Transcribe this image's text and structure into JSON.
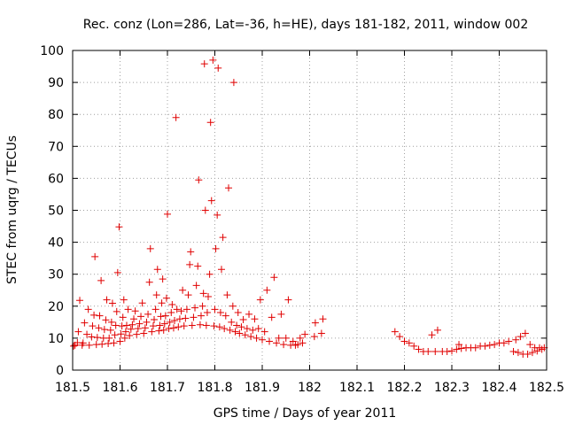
{
  "chart_data": {
    "type": "scatter",
    "title": "Rec. conz (Lon=286, Lat=-36, h=HE), days 181-182, 2011, window 002",
    "xlabel": "GPS time / Days of year 2011",
    "ylabel": "STEC from uqrg / TECUs",
    "xlim": [
      181.5,
      182.5
    ],
    "ylim": [
      0,
      100
    ],
    "x_ticks": [
      "181.5",
      "181.6",
      "181.7",
      "181.8",
      "181.9",
      "182",
      "182.1",
      "182.2",
      "182.3",
      "182.4",
      "182.5"
    ],
    "y_ticks": [
      "0",
      "10",
      "20",
      "30",
      "40",
      "50",
      "60",
      "70",
      "80",
      "90",
      "100"
    ],
    "grid": true,
    "marker": "+",
    "color": "#e00000",
    "series": [
      {
        "points": [
          [
            181.502,
            7.5
          ],
          [
            181.505,
            7.8
          ],
          [
            181.51,
            8.6
          ],
          [
            181.512,
            12.0
          ],
          [
            181.515,
            21.8
          ],
          [
            181.52,
            7.8
          ],
          [
            181.522,
            8.5
          ],
          [
            181.525,
            14.8
          ],
          [
            181.53,
            11.2
          ],
          [
            181.533,
            19.0
          ],
          [
            181.535,
            7.8
          ],
          [
            181.54,
            10.4
          ],
          [
            181.542,
            13.8
          ],
          [
            181.545,
            17.2
          ],
          [
            181.547,
            35.5
          ],
          [
            181.55,
            8.0
          ],
          [
            181.552,
            10.2
          ],
          [
            181.555,
            13.2
          ],
          [
            181.557,
            17.0
          ],
          [
            181.56,
            28.0
          ],
          [
            181.562,
            8.1
          ],
          [
            181.565,
            10.0
          ],
          [
            181.567,
            12.7
          ],
          [
            181.57,
            15.7
          ],
          [
            181.572,
            22.0
          ],
          [
            181.575,
            8.3
          ],
          [
            181.577,
            10.0
          ],
          [
            181.58,
            12.5
          ],
          [
            181.582,
            15.0
          ],
          [
            181.584,
            20.9
          ],
          [
            181.587,
            8.5
          ],
          [
            181.589,
            11.0
          ],
          [
            181.591,
            14.0
          ],
          [
            181.593,
            18.3
          ],
          [
            181.595,
            30.5
          ],
          [
            181.598,
            44.8
          ],
          [
            181.6,
            9.0
          ],
          [
            181.602,
            11.3
          ],
          [
            181.604,
            13.8
          ],
          [
            181.606,
            16.5
          ],
          [
            181.608,
            22.0
          ],
          [
            181.61,
            10.0
          ],
          [
            181.612,
            12.0
          ],
          [
            181.614,
            14.0
          ],
          [
            181.617,
            19.0
          ],
          [
            181.62,
            10.8
          ],
          [
            181.623,
            12.8
          ],
          [
            181.626,
            14.2
          ],
          [
            181.629,
            16.0
          ],
          [
            181.632,
            18.5
          ],
          [
            181.635,
            11.2
          ],
          [
            181.638,
            13.0
          ],
          [
            181.641,
            14.5
          ],
          [
            181.644,
            16.8
          ],
          [
            181.647,
            21.0
          ],
          [
            181.65,
            11.5
          ],
          [
            181.653,
            13.2
          ],
          [
            181.656,
            15.0
          ],
          [
            181.659,
            17.5
          ],
          [
            181.662,
            27.5
          ],
          [
            181.664,
            38.0
          ],
          [
            181.667,
            12.0
          ],
          [
            181.67,
            13.8
          ],
          [
            181.672,
            15.8
          ],
          [
            181.675,
            19.0
          ],
          [
            181.677,
            23.5
          ],
          [
            181.679,
            31.5
          ],
          [
            181.682,
            12.3
          ],
          [
            181.684,
            14.0
          ],
          [
            181.686,
            16.8
          ],
          [
            181.688,
            21.0
          ],
          [
            181.69,
            28.5
          ],
          [
            181.692,
            12.5
          ],
          [
            181.694,
            14.5
          ],
          [
            181.696,
            17.0
          ],
          [
            181.698,
            22.5
          ],
          [
            181.7,
            48.8
          ],
          [
            181.703,
            13.0
          ],
          [
            181.705,
            15.0
          ],
          [
            181.708,
            18.0
          ],
          [
            181.71,
            20.5
          ],
          [
            181.713,
            13.2
          ],
          [
            181.715,
            15.5
          ],
          [
            181.718,
            79.0
          ],
          [
            181.72,
            19.0
          ],
          [
            181.723,
            13.5
          ],
          [
            181.726,
            16.0
          ],
          [
            181.729,
            18.5
          ],
          [
            181.732,
            25.0
          ],
          [
            181.735,
            13.8
          ],
          [
            181.738,
            16.2
          ],
          [
            181.741,
            19.0
          ],
          [
            181.744,
            23.5
          ],
          [
            181.747,
            33.0
          ],
          [
            181.749,
            37.0
          ],
          [
            181.752,
            14.0
          ],
          [
            181.755,
            16.5
          ],
          [
            181.758,
            19.5
          ],
          [
            181.761,
            26.5
          ],
          [
            181.764,
            32.5
          ],
          [
            181.766,
            59.5
          ],
          [
            181.769,
            14.2
          ],
          [
            181.771,
            17.0
          ],
          [
            181.774,
            20.0
          ],
          [
            181.776,
            24.0
          ],
          [
            181.778,
            95.8
          ],
          [
            181.78,
            50.0
          ],
          [
            181.782,
            14.0
          ],
          [
            181.784,
            18.0
          ],
          [
            181.786,
            23.0
          ],
          [
            181.789,
            30.0
          ],
          [
            181.791,
            77.5
          ],
          [
            181.793,
            53.0
          ],
          [
            181.796,
            97.0
          ],
          [
            181.798,
            13.8
          ],
          [
            181.8,
            19.0
          ],
          [
            181.802,
            38.0
          ],
          [
            181.805,
            48.5
          ],
          [
            181.807,
            94.5
          ],
          [
            181.81,
            13.5
          ],
          [
            181.812,
            18.0
          ],
          [
            181.814,
            31.5
          ],
          [
            181.817,
            41.5
          ],
          [
            181.82,
            13.0
          ],
          [
            181.823,
            17.0
          ],
          [
            181.826,
            23.5
          ],
          [
            181.829,
            57.0
          ],
          [
            181.832,
            12.5
          ],
          [
            181.835,
            15.0
          ],
          [
            181.838,
            20.0
          ],
          [
            181.84,
            90.0
          ],
          [
            181.843,
            12.0
          ],
          [
            181.846,
            14.0
          ],
          [
            181.849,
            18.0
          ],
          [
            181.852,
            11.5
          ],
          [
            181.856,
            13.5
          ],
          [
            181.86,
            15.8
          ],
          [
            181.864,
            11.0
          ],
          [
            181.868,
            13.0
          ],
          [
            181.872,
            17.5
          ],
          [
            181.876,
            10.5
          ],
          [
            181.88,
            12.5
          ],
          [
            181.884,
            16.0
          ],
          [
            181.888,
            10.0
          ],
          [
            181.892,
            13.0
          ],
          [
            181.896,
            22.0
          ],
          [
            181.9,
            9.5
          ],
          [
            181.905,
            12.0
          ],
          [
            181.91,
            25.0
          ],
          [
            181.915,
            9.0
          ],
          [
            181.92,
            16.5
          ],
          [
            181.925,
            29.0
          ],
          [
            181.93,
            8.5
          ],
          [
            181.935,
            10.0
          ],
          [
            181.94,
            17.5
          ],
          [
            181.945,
            8.0
          ],
          [
            181.95,
            10.0
          ],
          [
            181.955,
            22.0
          ],
          [
            181.96,
            7.8
          ],
          [
            181.965,
            9.0
          ],
          [
            181.97,
            7.8
          ],
          [
            181.975,
            8.0
          ],
          [
            181.98,
            10.0
          ],
          [
            181.985,
            8.5
          ],
          [
            181.99,
            11.2
          ],
          [
            182.01,
            10.5
          ],
          [
            182.012,
            14.8
          ],
          [
            182.025,
            11.5
          ],
          [
            182.028,
            16.0
          ],
          [
            182.18,
            12.0
          ],
          [
            182.19,
            10.5
          ],
          [
            182.2,
            9.0
          ],
          [
            182.21,
            8.5
          ],
          [
            182.22,
            7.5
          ],
          [
            182.23,
            6.5
          ],
          [
            182.24,
            5.8
          ],
          [
            182.25,
            5.8
          ],
          [
            182.258,
            11.0
          ],
          [
            182.265,
            5.8
          ],
          [
            182.27,
            12.5
          ],
          [
            182.28,
            5.8
          ],
          [
            182.29,
            5.8
          ],
          [
            182.3,
            6.0
          ],
          [
            182.31,
            6.5
          ],
          [
            182.315,
            8.0
          ],
          [
            182.32,
            6.8
          ],
          [
            182.33,
            7.0
          ],
          [
            182.34,
            7.0
          ],
          [
            182.35,
            7.0
          ],
          [
            182.36,
            7.5
          ],
          [
            182.37,
            7.5
          ],
          [
            182.38,
            7.8
          ],
          [
            182.39,
            8.0
          ],
          [
            182.4,
            8.5
          ],
          [
            182.41,
            8.5
          ],
          [
            182.42,
            9.0
          ],
          [
            182.43,
            5.8
          ],
          [
            182.435,
            9.5
          ],
          [
            182.44,
            5.5
          ],
          [
            182.445,
            10.5
          ],
          [
            182.45,
            5.0
          ],
          [
            182.455,
            11.5
          ],
          [
            182.46,
            5.0
          ],
          [
            182.465,
            8.0
          ],
          [
            182.47,
            5.5
          ],
          [
            182.475,
            7.0
          ],
          [
            182.48,
            6.0
          ],
          [
            182.485,
            7.0
          ],
          [
            182.49,
            6.5
          ],
          [
            182.495,
            7.0
          ]
        ]
      }
    ]
  }
}
